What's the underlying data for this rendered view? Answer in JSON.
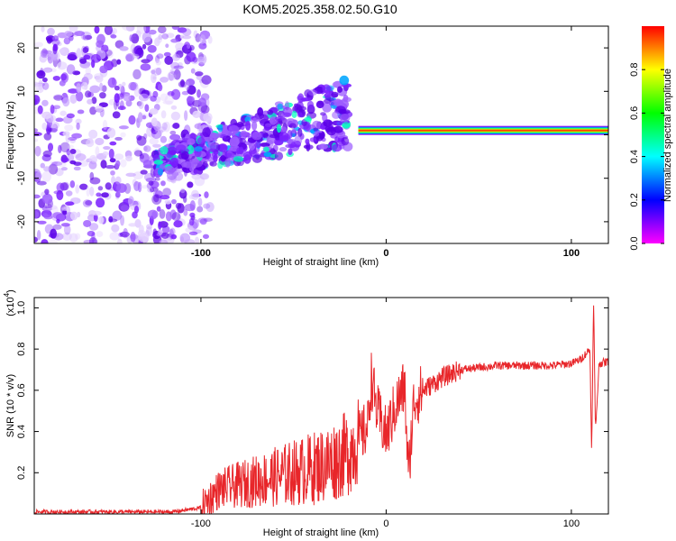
{
  "title": "KOM5.2025.358.02.50.G10",
  "chart_data": [
    {
      "type": "heatmap",
      "name": "spectrogram",
      "xlabel": "Height of straight line (km)",
      "ylabel": "Frequency (Hz)",
      "xlim": [
        -190,
        120
      ],
      "ylim": [
        -25,
        25
      ],
      "xticks": [
        -100,
        0,
        100
      ],
      "yticks": [
        -20,
        -10,
        0,
        10,
        20
      ],
      "colorbar": {
        "label": "Normalized spectral amplitude",
        "range": [
          0,
          1
        ],
        "ticks": [
          0.0,
          0.2,
          0.4,
          0.6,
          0.8
        ],
        "colormap": [
          "#ff00ff",
          "#0000ff",
          "#00ffff",
          "#00ff00",
          "#ffff00",
          "#ff0000"
        ]
      },
      "regions": [
        {
          "name": "sparse noise",
          "x_range": [
            -190,
            -125
          ],
          "freq_range": [
            -25,
            25
          ],
          "amplitude": 0.12
        },
        {
          "name": "noisy band",
          "x_range": [
            -125,
            -20
          ],
          "freq_range": [
            -10,
            8
          ],
          "amplitude": 0.25
        },
        {
          "name": "stable line",
          "x_range": [
            -15,
            120
          ],
          "freq_center": 1,
          "amplitude": 0.95
        }
      ]
    },
    {
      "type": "line",
      "name": "snr",
      "xlabel": "Height of straight line (km)",
      "ylabel": "SNR (10 * v/v)",
      "y_multiplier": "(x10",
      "y_multiplier_exp": "4",
      "xlim": [
        -190,
        120
      ],
      "ylim": [
        0,
        1.05
      ],
      "xticks": [
        -100,
        0,
        100
      ],
      "yticks": [
        0.2,
        0.4,
        0.6,
        0.8,
        1.0
      ],
      "color": "#e8262a",
      "x": [
        -190,
        -170,
        -150,
        -130,
        -115,
        -100,
        -95,
        -90,
        -80,
        -70,
        -60,
        -50,
        -40,
        -30,
        -20,
        -15,
        -10,
        -8,
        -5,
        0,
        5,
        10,
        12,
        15,
        20,
        30,
        40,
        50,
        60,
        70,
        80,
        90,
        100,
        105,
        110,
        111,
        112,
        113,
        115,
        120
      ],
      "values": [
        0.01,
        0.01,
        0.01,
        0.01,
        0.01,
        0.03,
        0.08,
        0.12,
        0.14,
        0.16,
        0.18,
        0.2,
        0.22,
        0.25,
        0.3,
        0.36,
        0.42,
        0.66,
        0.5,
        0.38,
        0.52,
        0.62,
        0.18,
        0.55,
        0.6,
        0.66,
        0.7,
        0.71,
        0.72,
        0.72,
        0.72,
        0.72,
        0.73,
        0.75,
        0.8,
        0.3,
        1.05,
        0.4,
        0.73,
        0.74
      ]
    }
  ]
}
